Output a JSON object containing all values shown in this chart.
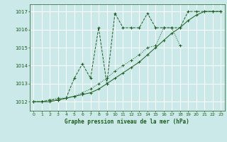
{
  "title": "Graphe pression niveau de la mer (hPa)",
  "xlim": [
    -0.5,
    23.5
  ],
  "ylim": [
    1011.5,
    1017.4
  ],
  "yticks": [
    1012,
    1013,
    1014,
    1015,
    1016,
    1017
  ],
  "xticks": [
    0,
    1,
    2,
    3,
    4,
    5,
    6,
    7,
    8,
    9,
    10,
    11,
    12,
    13,
    14,
    15,
    16,
    17,
    18,
    19,
    20,
    21,
    22,
    23
  ],
  "bg_color": "#cce9e9",
  "grid_color": "#b0d8d8",
  "line_color": "#1a5c1a",
  "series1_x": [
    0,
    1,
    2,
    3,
    4,
    5,
    6,
    7,
    8,
    9,
    10,
    11,
    12,
    13,
    14,
    15,
    16,
    17,
    18,
    19,
    20,
    21,
    22,
    23
  ],
  "series1_y": [
    1012.0,
    1012.0,
    1012.1,
    1012.1,
    1012.2,
    1013.3,
    1014.1,
    1013.3,
    1016.1,
    1013.0,
    1016.9,
    1016.1,
    1016.1,
    1016.1,
    1016.9,
    1016.1,
    1016.1,
    1016.1,
    1016.1,
    1017.0,
    1017.0,
    1017.0,
    1017.0,
    1017.0
  ],
  "series2_x": [
    0,
    1,
    2,
    3,
    4,
    5,
    6,
    7,
    8,
    9,
    10,
    11,
    12,
    13,
    14,
    15,
    16,
    17,
    18
  ],
  "series2_y": [
    1012.0,
    1012.0,
    1012.1,
    1012.2,
    1012.2,
    1012.3,
    1012.5,
    1012.7,
    1013.0,
    1013.3,
    1013.7,
    1014.0,
    1014.3,
    1014.6,
    1015.0,
    1015.1,
    1016.1,
    1016.1,
    1015.1
  ],
  "series3_x": [
    0,
    1,
    2,
    3,
    4,
    5,
    6,
    7,
    8,
    9,
    10,
    11,
    12,
    13,
    14,
    15,
    16,
    17,
    18,
    19,
    20,
    21,
    22,
    23
  ],
  "series3_y": [
    1012.0,
    1012.0,
    1012.0,
    1012.1,
    1012.2,
    1012.3,
    1012.4,
    1012.5,
    1012.7,
    1013.0,
    1013.3,
    1013.6,
    1013.9,
    1014.2,
    1014.6,
    1015.0,
    1015.4,
    1015.8,
    1016.1,
    1016.5,
    1016.8,
    1017.0,
    1017.0,
    1017.0
  ]
}
